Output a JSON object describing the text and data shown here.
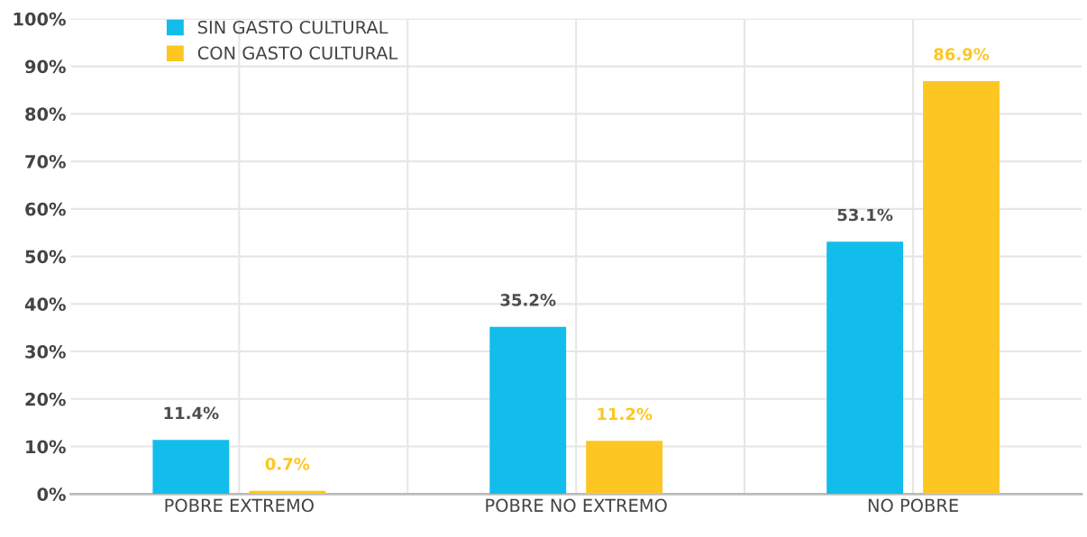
{
  "chart_data": {
    "type": "bar",
    "categories": [
      "POBRE EXTREMO",
      "POBRE NO EXTREMO",
      "NO POBRE"
    ],
    "series": [
      {
        "name": "SIN GASTO CULTURAL",
        "color": "#13bdeb",
        "values": [
          11.4,
          35.2,
          53.1
        ],
        "value_labels": [
          "11.4%",
          "35.2%",
          "53.1%"
        ]
      },
      {
        "name": "CON GASTO CULTURAL",
        "color": "#fec623",
        "values": [
          0.7,
          11.2,
          86.9
        ],
        "value_labels": [
          "0.7%",
          "11.2%",
          "86.9%"
        ]
      }
    ],
    "ylim": [
      0,
      100
    ],
    "yticks": [
      {
        "value": 0,
        "label": "0%"
      },
      {
        "value": 10,
        "label": "10%"
      },
      {
        "value": 20,
        "label": "20%"
      },
      {
        "value": 30,
        "label": "30%"
      },
      {
        "value": 40,
        "label": "40%"
      },
      {
        "value": 50,
        "label": "50%"
      },
      {
        "value": 60,
        "label": "60%"
      },
      {
        "value": 70,
        "label": "70%"
      },
      {
        "value": 80,
        "label": "80%"
      },
      {
        "value": 90,
        "label": "90%"
      },
      {
        "value": 100,
        "label": "100%"
      }
    ],
    "grid": true,
    "legend": "top left"
  }
}
